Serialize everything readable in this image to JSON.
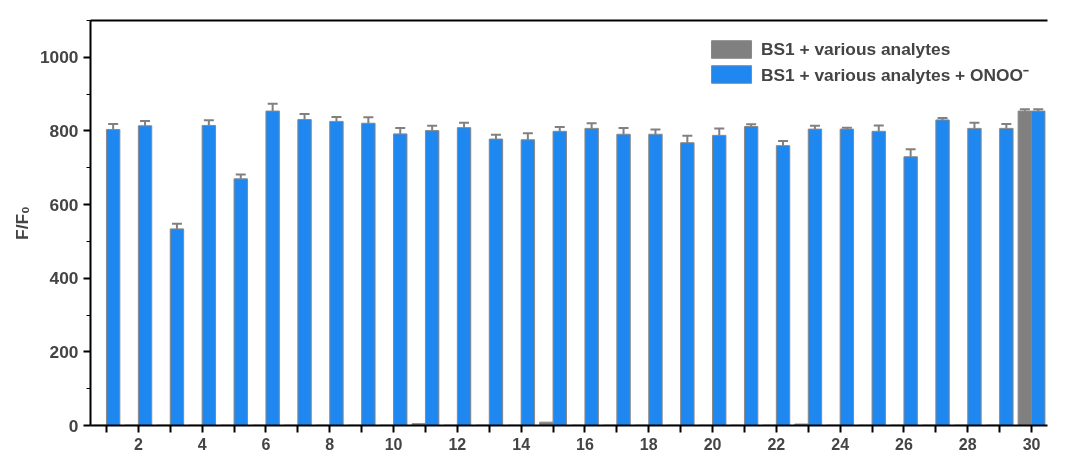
{
  "chart_data": {
    "type": "bar",
    "ylabel": "F/F₀",
    "x": [
      1,
      2,
      3,
      4,
      5,
      6,
      7,
      8,
      9,
      10,
      11,
      12,
      13,
      14,
      15,
      16,
      17,
      18,
      19,
      20,
      21,
      22,
      23,
      24,
      25,
      26,
      27,
      28,
      29,
      30
    ],
    "xlim": [
      0.5,
      30.5
    ],
    "xticks": [
      {
        "value": 1,
        "label": null
      },
      2,
      {
        "value": 3,
        "label": null
      },
      4,
      {
        "value": 5,
        "label": null
      },
      6,
      {
        "value": 7,
        "label": null
      },
      8,
      {
        "value": 9,
        "label": null
      },
      10,
      {
        "value": 11,
        "label": null
      },
      12,
      {
        "value": 13,
        "label": null
      },
      14,
      {
        "value": 15,
        "label": null
      },
      16,
      {
        "value": 17,
        "label": null
      },
      18,
      {
        "value": 19,
        "label": null
      },
      20,
      {
        "value": 21,
        "label": null
      },
      22,
      {
        "value": 23,
        "label": null
      },
      24,
      {
        "value": 25,
        "label": null
      },
      26,
      {
        "value": 27,
        "label": null
      },
      28,
      {
        "value": 29,
        "label": null
      },
      30
    ],
    "ylim": [
      0,
      1100
    ],
    "yticks": [
      0,
      200,
      400,
      600,
      800,
      1000
    ],
    "series": [
      {
        "name": "BS1 + various analytes",
        "color": "#808080",
        "values": [
          1,
          1,
          1,
          1,
          1,
          1,
          1,
          1,
          1,
          1,
          5,
          1,
          1,
          1,
          9,
          1,
          1,
          1,
          1,
          1,
          1,
          1,
          4,
          1,
          1,
          1,
          1,
          1,
          1,
          854
        ],
        "errors": [
          null,
          null,
          null,
          null,
          null,
          null,
          null,
          null,
          null,
          null,
          null,
          null,
          null,
          null,
          null,
          null,
          null,
          null,
          null,
          null,
          null,
          null,
          null,
          null,
          null,
          null,
          null,
          null,
          null,
          5
        ]
      },
      {
        "name": "BS1 + various analytes + ONOO⁻",
        "color": "#1e88f0",
        "values": [
          804,
          814,
          534,
          815,
          670,
          854,
          831,
          826,
          821,
          792,
          801,
          809,
          778,
          776,
          799,
          807,
          791,
          791,
          768,
          788,
          812,
          760,
          805,
          805,
          799,
          730,
          830,
          807,
          807,
          854
        ],
        "errors": [
          15,
          13,
          14,
          14,
          12,
          20,
          15,
          12,
          16,
          16,
          13,
          13,
          12,
          18,
          12,
          14,
          17,
          13,
          19,
          19,
          6,
          13,
          9,
          4,
          16,
          20,
          5,
          15,
          12,
          5
        ]
      }
    ],
    "legend": "top right",
    "grid": false
  }
}
